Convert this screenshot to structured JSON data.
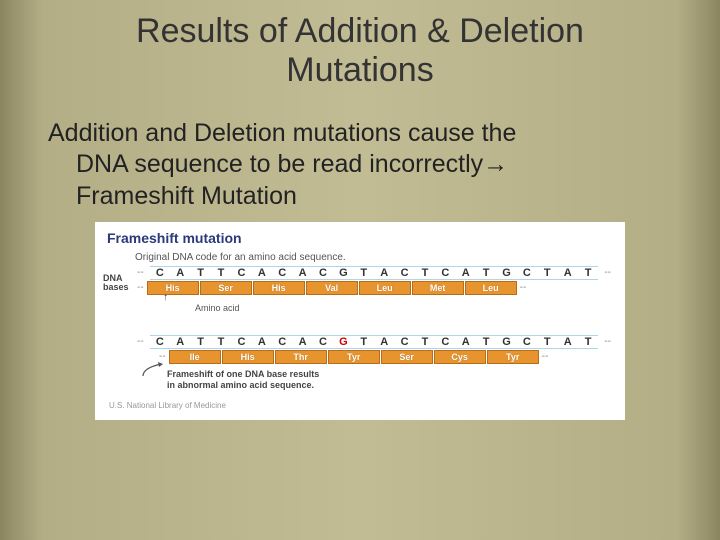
{
  "slide": {
    "title_line1": "Results of Addition & Deletion",
    "title_line2": "Mutations",
    "body_line1": "Addition and Deletion mutations cause the",
    "body_line2": "DNA sequence to be read incorrectly→",
    "body_line3": "Frameshift Mutation"
  },
  "diagram": {
    "title": "Frameshift mutation",
    "sub1": "Original DNA code for an amino acid sequence.",
    "label_dna": "DNA",
    "label_bases": "bases",
    "label_amino": "Amino acid",
    "caption_line1": "Frameshift of one DNA base results",
    "caption_line2": "in abnormal amino acid sequence.",
    "credit": "U.S. National Library of Medicine",
    "bases_original": [
      "C",
      "A",
      "T",
      "T",
      "C",
      "A",
      "C",
      "A",
      "C",
      "G",
      "T",
      "A",
      "C",
      "T",
      "C",
      "A",
      "T",
      "G",
      "C",
      "T",
      "A",
      "T"
    ],
    "aa_original": [
      "His",
      "Ser",
      "His",
      "Val",
      "Leu",
      "Met",
      "Leu"
    ],
    "bases_shifted": [
      "C",
      "A",
      "T",
      "T",
      "C",
      "A",
      "C",
      "A",
      "C",
      "G",
      "T",
      "A",
      "C",
      "T",
      "C",
      "A",
      "T",
      "G",
      "C",
      "T",
      "A",
      "T"
    ],
    "insertion_index": 9,
    "aa_shifted": [
      "Ile",
      "His",
      "Thr",
      "Tyr",
      "Ser",
      "Cys",
      "Tyr"
    ],
    "colors": {
      "aa_box": "#e8942e",
      "aa_border": "#b56f1a",
      "strip_border": "#b2d4e8",
      "diag_title": "#2a3a7a"
    }
  }
}
